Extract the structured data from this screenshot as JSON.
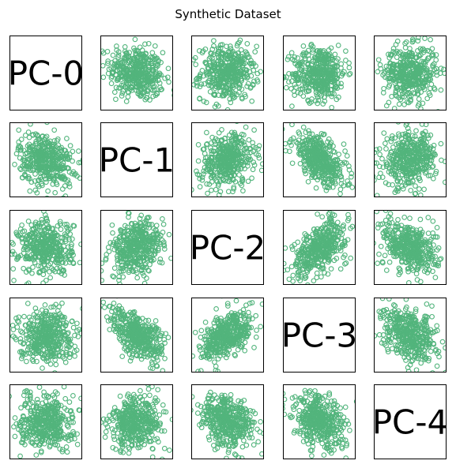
{
  "chart_data": {
    "type": "scatter",
    "title": "Synthetic Dataset",
    "matrix": "pairplot",
    "variables": [
      "PC-0",
      "PC-1",
      "PC-2",
      "PC-3",
      "PC-4"
    ],
    "marker": "open-circle",
    "color": "#52b47c",
    "axes_ticks": false,
    "grid": false,
    "legend": "none"
  }
}
